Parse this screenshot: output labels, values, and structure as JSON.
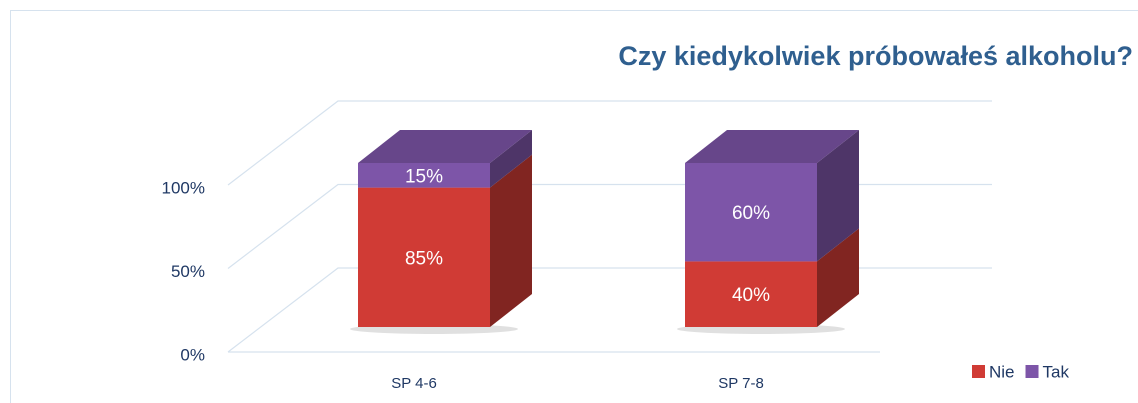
{
  "chart_data": {
    "type": "bar3d",
    "stacked": true,
    "title": "Czy kiedykolwiek próbowałeś alkoholu?",
    "categories": [
      "SP 4-6",
      "SP 7-8"
    ],
    "series": [
      {
        "name": "Nie",
        "color": "#d03b35",
        "values": [
          85,
          40
        ],
        "value_labels": [
          "85%",
          "40%"
        ]
      },
      {
        "name": "Tak",
        "color": "#7d55a8",
        "values": [
          15,
          60
        ],
        "value_labels": [
          "15%",
          "60%"
        ]
      }
    ],
    "ylim": [
      0,
      100
    ],
    "yticks": [
      {
        "value": 0,
        "label": "0%"
      },
      {
        "value": 50,
        "label": "50%"
      },
      {
        "value": 100,
        "label": "100%"
      }
    ],
    "grid": true,
    "legend": "bottom-right"
  }
}
